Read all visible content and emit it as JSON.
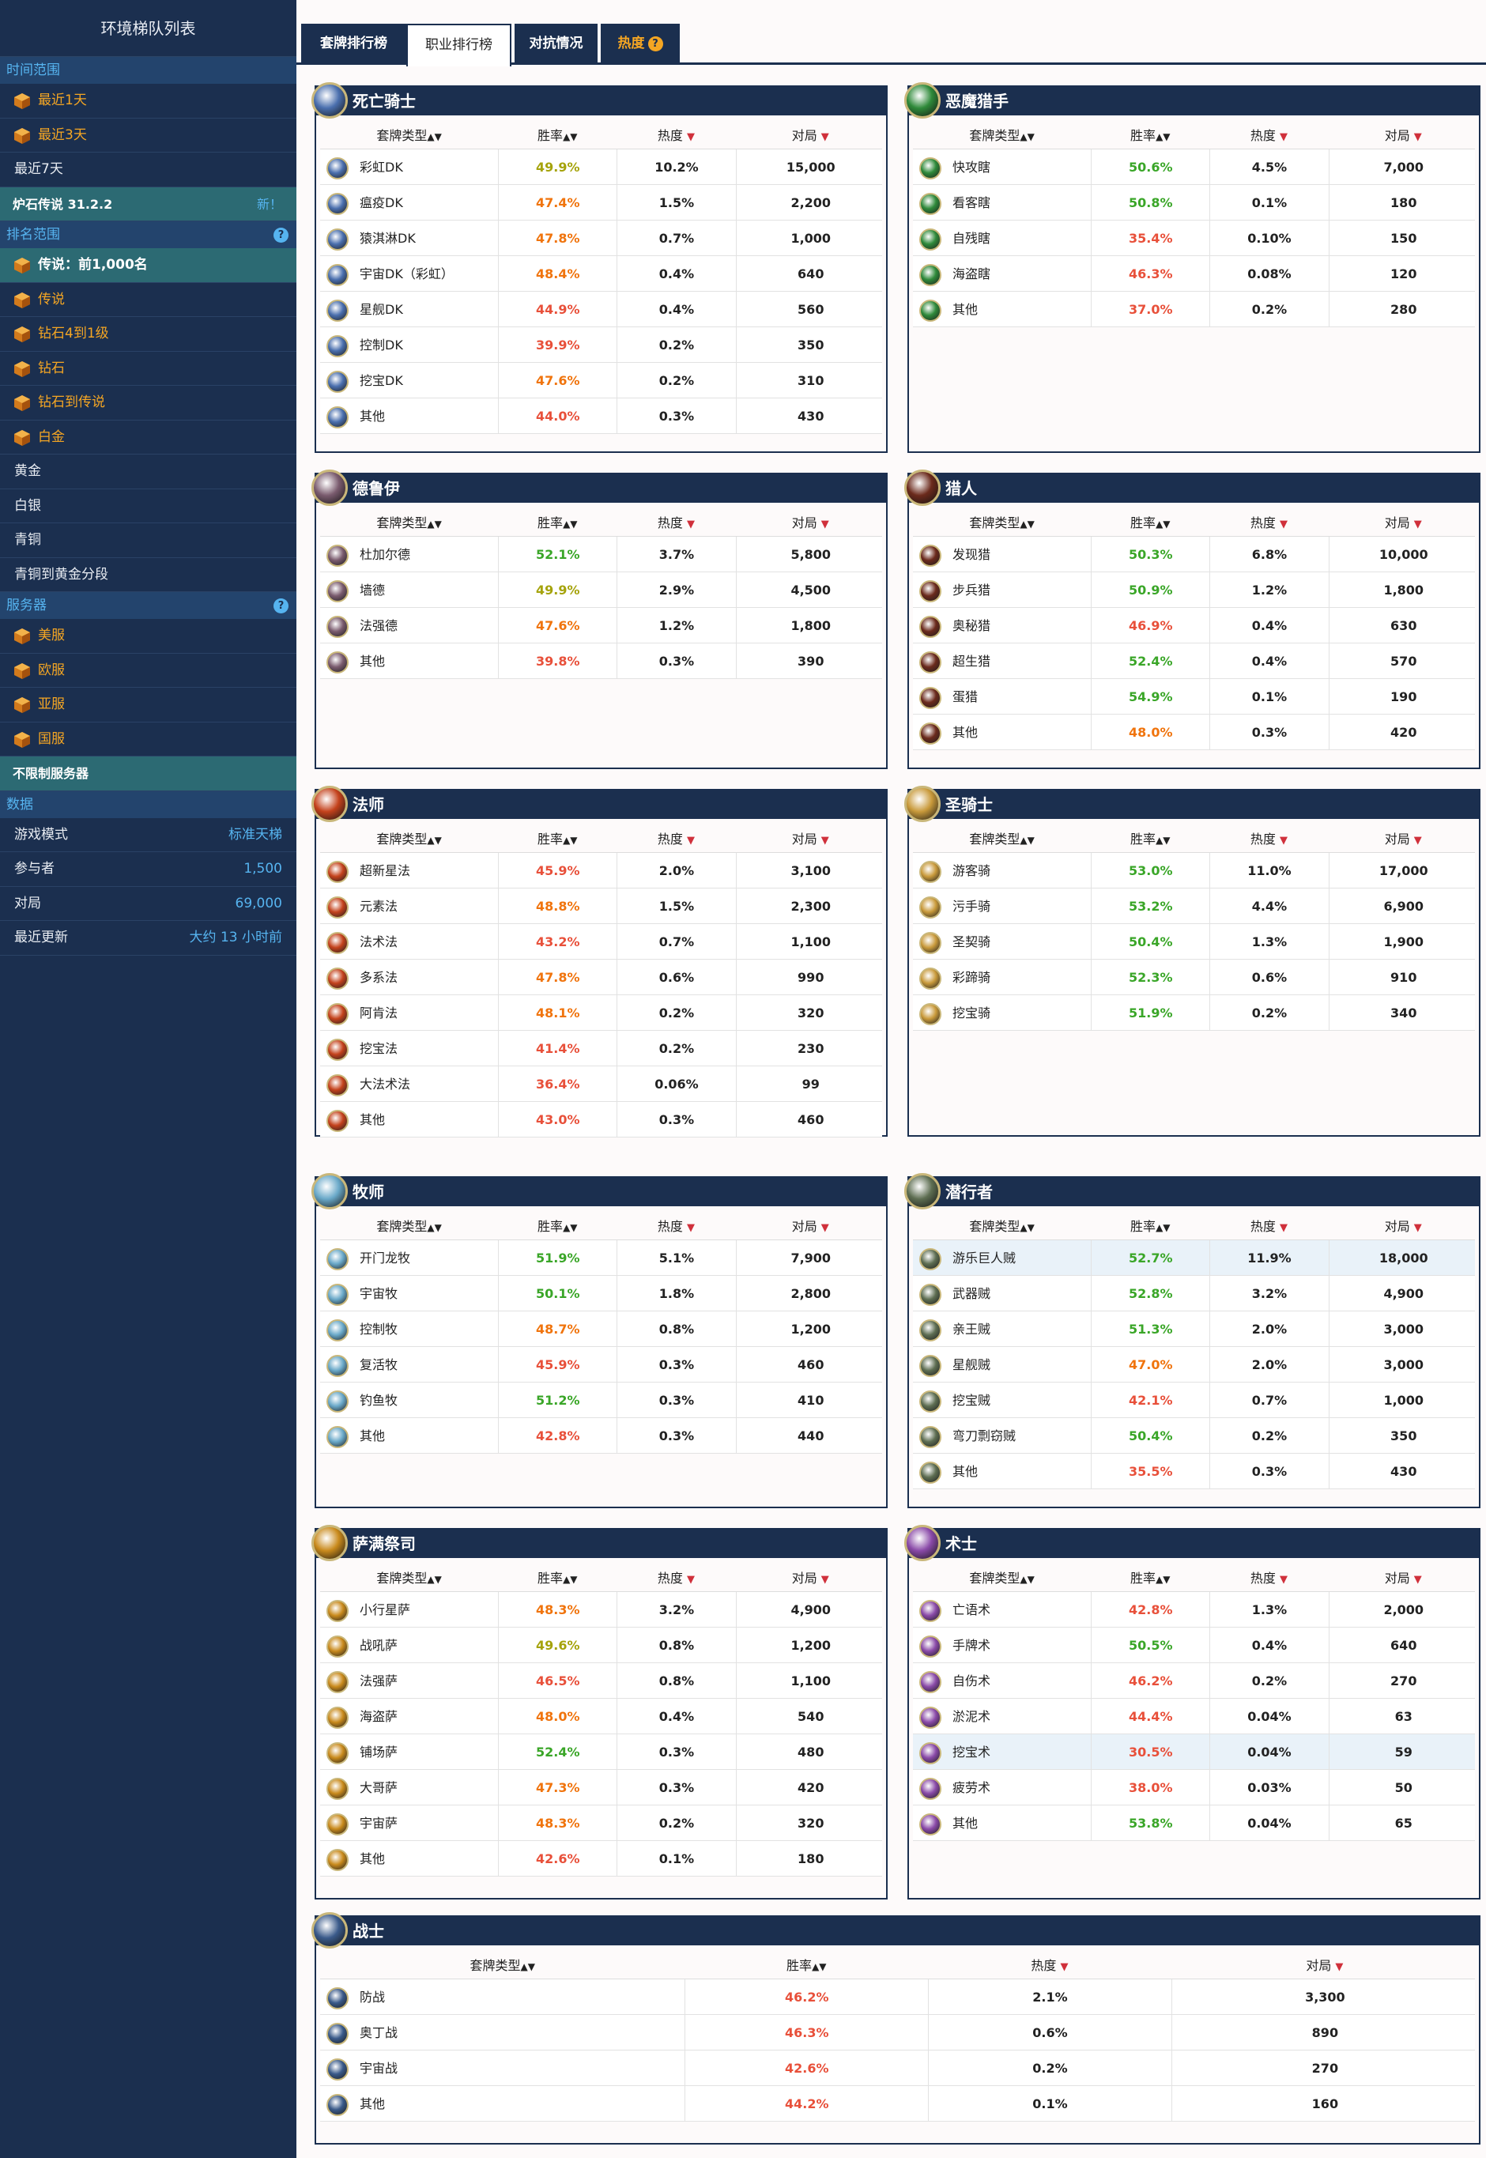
{
  "sidebar": {
    "title": "环境梯队列表",
    "time_header": "时间范围",
    "time_items": [
      {
        "label": "最近1天",
        "icon": "rank-cube-icon"
      },
      {
        "label": "最近3天",
        "icon": "rank-cube-icon"
      },
      {
        "label": "最近7天"
      }
    ],
    "version": "炉石传说 31.2.2",
    "version_badge": "新！",
    "rank_header": "排名范围",
    "rank_selected": "传说：前1,000名",
    "rank_items": [
      "传说",
      "钻石4到1级",
      "钻石",
      "钻石到传说",
      "白金"
    ],
    "rank_plain": [
      "黄金",
      "白银",
      "青铜",
      "青铜到黄金分段"
    ],
    "server_header": "服务器",
    "server_items": [
      "美服",
      "欧服",
      "亚服",
      "国服"
    ],
    "server_selected": "不限制服务器",
    "data_header": "数据",
    "data_rows": [
      {
        "label": "游戏模式",
        "value": "标准天梯"
      },
      {
        "label": "参与者",
        "value": "1,500"
      },
      {
        "label": "对局",
        "value": "69,000"
      },
      {
        "label": "最近更新",
        "value": "大约 13 小时前"
      }
    ]
  },
  "tabs": {
    "deck": "套牌排行榜",
    "class": "职业排行榜",
    "matchup": "对抗情况",
    "heat": "热度"
  },
  "colhead": {
    "type": "套牌类型",
    "winrate": "胜率",
    "pop": "热度",
    "games": "对局"
  },
  "classes": [
    {
      "name": "死亡骑士",
      "color": "#4a6fae",
      "rows": [
        [
          "彩虹DK",
          "49.9%",
          "10.2%",
          "15,000",
          "y"
        ],
        [
          "瘟疫DK",
          "47.4%",
          "1.5%",
          "2,200",
          "o"
        ],
        [
          "猿淇淋DK",
          "47.8%",
          "0.7%",
          "1,000",
          "o"
        ],
        [
          "宇宙DK（彩虹）",
          "48.4%",
          "0.4%",
          "640",
          "o"
        ],
        [
          "星舰DK",
          "44.9%",
          "0.4%",
          "560",
          "r"
        ],
        [
          "控制DK",
          "39.9%",
          "0.2%",
          "350",
          "r"
        ],
        [
          "挖宝DK",
          "47.6%",
          "0.2%",
          "310",
          "o"
        ],
        [
          "其他",
          "44.0%",
          "0.3%",
          "430",
          "r"
        ]
      ]
    },
    {
      "name": "恶魔猎手",
      "color": "#2f8a3a",
      "rows": [
        [
          "快攻瞎",
          "50.6%",
          "4.5%",
          "7,000",
          "g"
        ],
        [
          "看客瞎",
          "50.8%",
          "0.1%",
          "180",
          "g"
        ],
        [
          "自残瞎",
          "35.4%",
          "0.10%",
          "150",
          "r"
        ],
        [
          "海盗瞎",
          "46.3%",
          "0.08%",
          "120",
          "r"
        ],
        [
          "其他",
          "37.0%",
          "0.2%",
          "280",
          "r"
        ]
      ]
    },
    {
      "name": "德鲁伊",
      "color": "#7a5b6e",
      "rows": [
        [
          "杜加尔德",
          "52.1%",
          "3.7%",
          "5,800",
          "g"
        ],
        [
          "墙德",
          "49.9%",
          "2.9%",
          "4,500",
          "y"
        ],
        [
          "法强德",
          "47.6%",
          "1.2%",
          "1,800",
          "o"
        ],
        [
          "其他",
          "39.8%",
          "0.3%",
          "390",
          "r"
        ]
      ]
    },
    {
      "name": "猎人",
      "color": "#6b2a1c",
      "rows": [
        [
          "发现猎",
          "50.3%",
          "6.8%",
          "10,000",
          "g"
        ],
        [
          "步兵猎",
          "50.9%",
          "1.2%",
          "1,800",
          "g"
        ],
        [
          "奥秘猎",
          "46.9%",
          "0.4%",
          "630",
          "r"
        ],
        [
          "超生猎",
          "52.4%",
          "0.4%",
          "570",
          "g"
        ],
        [
          "蛋猎",
          "54.9%",
          "0.1%",
          "190",
          "g"
        ],
        [
          "其他",
          "48.0%",
          "0.3%",
          "420",
          "o"
        ]
      ]
    },
    {
      "name": "法师",
      "color": "#c4421c",
      "rows": [
        [
          "超新星法",
          "45.9%",
          "2.0%",
          "3,100",
          "r"
        ],
        [
          "元素法",
          "48.8%",
          "1.5%",
          "2,300",
          "o"
        ],
        [
          "法术法",
          "43.2%",
          "0.7%",
          "1,100",
          "r"
        ],
        [
          "多系法",
          "47.8%",
          "0.6%",
          "990",
          "o"
        ],
        [
          "阿肯法",
          "48.1%",
          "0.2%",
          "320",
          "o"
        ],
        [
          "挖宝法",
          "41.4%",
          "0.2%",
          "230",
          "r"
        ],
        [
          "大法术法",
          "36.4%",
          "0.06%",
          "99",
          "r"
        ],
        [
          "其他",
          "43.0%",
          "0.3%",
          "460",
          "r"
        ]
      ]
    },
    {
      "name": "圣骑士",
      "color": "#c99a3b",
      "rows": [
        [
          "游客骑",
          "53.0%",
          "11.0%",
          "17,000",
          "g"
        ],
        [
          "污手骑",
          "53.2%",
          "4.4%",
          "6,900",
          "g"
        ],
        [
          "圣契骑",
          "50.4%",
          "1.3%",
          "1,900",
          "g"
        ],
        [
          "彩蹄骑",
          "52.3%",
          "0.6%",
          "910",
          "g"
        ],
        [
          "挖宝骑",
          "51.9%",
          "0.2%",
          "340",
          "g"
        ]
      ]
    },
    {
      "name": "牧师",
      "color": "#6aa9c9",
      "rows": [
        [
          "开门龙牧",
          "51.9%",
          "5.1%",
          "7,900",
          "g"
        ],
        [
          "宇宙牧",
          "50.1%",
          "1.8%",
          "2,800",
          "g"
        ],
        [
          "控制牧",
          "48.7%",
          "0.8%",
          "1,200",
          "o"
        ],
        [
          "复活牧",
          "45.9%",
          "0.3%",
          "460",
          "r"
        ],
        [
          "钓鱼牧",
          "51.2%",
          "0.3%",
          "410",
          "g"
        ],
        [
          "其他",
          "42.8%",
          "0.3%",
          "440",
          "r"
        ]
      ]
    },
    {
      "name": "潜行者",
      "color": "#5e6e52",
      "rows": [
        [
          "游乐巨人贼",
          "52.7%",
          "11.9%",
          "18,000",
          "g"
        ],
        [
          "武器贼",
          "52.8%",
          "3.2%",
          "4,900",
          "g"
        ],
        [
          "亲王贼",
          "51.3%",
          "2.0%",
          "3,000",
          "g"
        ],
        [
          "星舰贼",
          "47.0%",
          "2.0%",
          "3,000",
          "o"
        ],
        [
          "挖宝贼",
          "42.1%",
          "0.7%",
          "1,000",
          "r"
        ],
        [
          "弯刀剽窃贼",
          "50.4%",
          "0.2%",
          "350",
          "g"
        ],
        [
          "其他",
          "35.5%",
          "0.3%",
          "430",
          "r"
        ]
      ]
    },
    {
      "name": "萨满祭司",
      "color": "#c98a1c",
      "rows": [
        [
          "小行星萨",
          "48.3%",
          "3.2%",
          "4,900",
          "o"
        ],
        [
          "战吼萨",
          "49.6%",
          "0.8%",
          "1,200",
          "y"
        ],
        [
          "法强萨",
          "46.5%",
          "0.8%",
          "1,100",
          "r"
        ],
        [
          "海盗萨",
          "48.0%",
          "0.4%",
          "540",
          "o"
        ],
        [
          "铺场萨",
          "52.4%",
          "0.3%",
          "480",
          "g"
        ],
        [
          "大哥萨",
          "47.3%",
          "0.3%",
          "420",
          "o"
        ],
        [
          "宇宙萨",
          "48.3%",
          "0.2%",
          "320",
          "o"
        ],
        [
          "其他",
          "42.6%",
          "0.1%",
          "180",
          "r"
        ]
      ]
    },
    {
      "name": "术士",
      "color": "#8a4aa8",
      "rows": [
        [
          "亡语术",
          "42.8%",
          "1.3%",
          "2,000",
          "r"
        ],
        [
          "手牌术",
          "50.5%",
          "0.4%",
          "640",
          "g"
        ],
        [
          "自伤术",
          "46.2%",
          "0.2%",
          "270",
          "r"
        ],
        [
          "淤泥术",
          "44.4%",
          "0.04%",
          "63",
          "r"
        ],
        [
          "挖宝术",
          "30.5%",
          "0.04%",
          "59",
          "r"
        ],
        [
          "疲劳术",
          "38.0%",
          "0.03%",
          "50",
          "r"
        ],
        [
          "其他",
          "53.8%",
          "0.04%",
          "65",
          "g"
        ]
      ]
    },
    {
      "name": "战士",
      "color": "#3a5a8a",
      "rows": [
        [
          "防战",
          "46.2%",
          "2.1%",
          "3,300",
          "r"
        ],
        [
          "奥丁战",
          "46.3%",
          "0.6%",
          "890",
          "r"
        ],
        [
          "宇宙战",
          "42.6%",
          "0.2%",
          "270",
          "r"
        ],
        [
          "其他",
          "44.2%",
          "0.1%",
          "160",
          "r"
        ]
      ]
    }
  ]
}
